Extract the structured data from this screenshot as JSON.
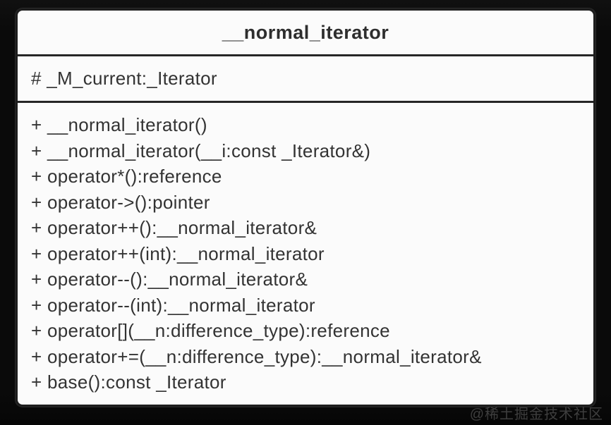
{
  "uml_class": {
    "title": "__normal_iterator",
    "attributes": [
      "# _M_current:_Iterator"
    ],
    "methods": [
      "+ __normal_iterator()",
      "+ __normal_iterator(__i:const _Iterator&)",
      "+ operator*():reference",
      "+ operator->():pointer",
      "+ operator++():__normal_iterator&",
      "+ operator++(int):__normal_iterator",
      "+ operator--():__normal_iterator&",
      "+ operator--(int):__normal_iterator",
      "+ operator[](__n:difference_type):reference",
      "+ operator+=(__n:difference_type):__normal_iterator&",
      "+ base():const _Iterator"
    ]
  },
  "watermark": {
    "text": "@稀土掘金技术社区"
  },
  "colors": {
    "background": "#0a0a0a",
    "box_fill": "#fbfbfb",
    "box_border": "#1d1d1d",
    "text": "#333333",
    "watermark": "#3e3e3e"
  }
}
